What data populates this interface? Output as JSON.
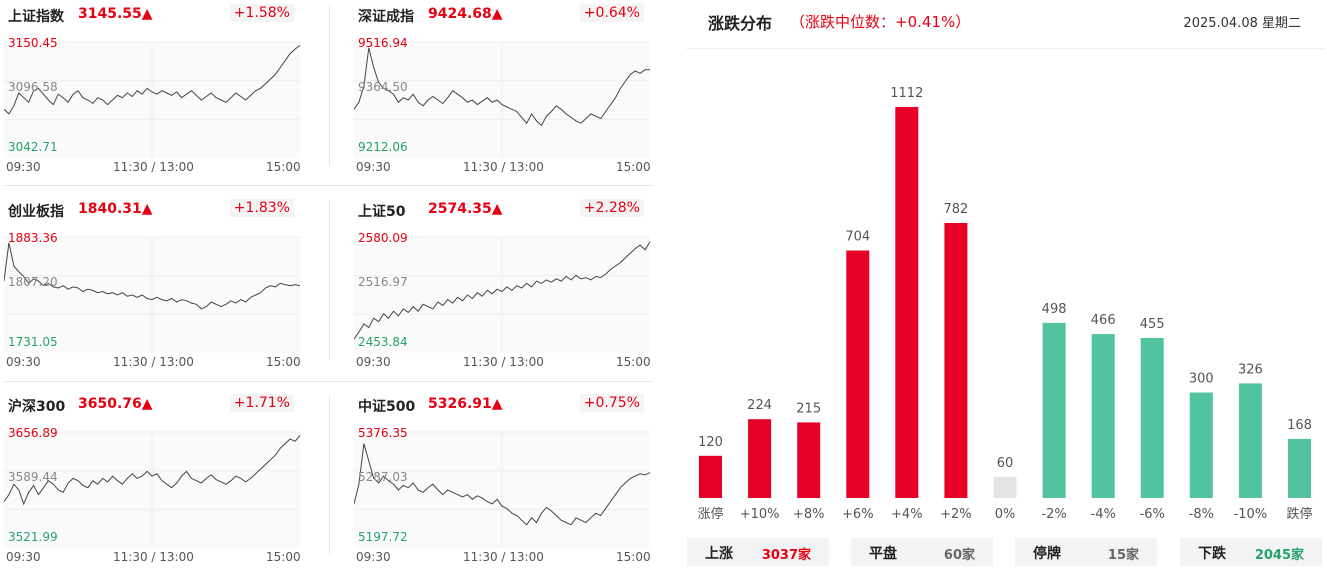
{
  "indices": [
    {
      "name": "上证指数",
      "value": "3145.55▲",
      "change": "+1.58%",
      "high": "3150.45",
      "mid": "3096.58",
      "low": "3042.71",
      "series": [
        0.42,
        0.38,
        0.45,
        0.56,
        0.52,
        0.48,
        0.58,
        0.6,
        0.55,
        0.5,
        0.46,
        0.55,
        0.52,
        0.48,
        0.55,
        0.58,
        0.52,
        0.5,
        0.47,
        0.52,
        0.5,
        0.46,
        0.5,
        0.54,
        0.52,
        0.56,
        0.53,
        0.58,
        0.55,
        0.6,
        0.57,
        0.55,
        0.58,
        0.56,
        0.54,
        0.57,
        0.52,
        0.55,
        0.58,
        0.54,
        0.5,
        0.53,
        0.56,
        0.52,
        0.5,
        0.48,
        0.52,
        0.56,
        0.53,
        0.5,
        0.54,
        0.58,
        0.6,
        0.64,
        0.68,
        0.72,
        0.78,
        0.84,
        0.9,
        0.94,
        0.97
      ]
    },
    {
      "name": "深证成指",
      "value": "9424.68▲",
      "change": "+0.64%",
      "high": "9516.94",
      "mid": "9364.50",
      "low": "9212.06",
      "series": [
        0.42,
        0.48,
        0.62,
        0.95,
        0.78,
        0.65,
        0.6,
        0.58,
        0.55,
        0.48,
        0.52,
        0.5,
        0.55,
        0.48,
        0.45,
        0.5,
        0.53,
        0.5,
        0.47,
        0.52,
        0.58,
        0.55,
        0.52,
        0.48,
        0.5,
        0.46,
        0.49,
        0.52,
        0.48,
        0.5,
        0.46,
        0.44,
        0.42,
        0.4,
        0.35,
        0.3,
        0.38,
        0.32,
        0.28,
        0.36,
        0.4,
        0.45,
        0.42,
        0.38,
        0.35,
        0.32,
        0.3,
        0.34,
        0.38,
        0.36,
        0.34,
        0.4,
        0.46,
        0.52,
        0.6,
        0.66,
        0.72,
        0.75,
        0.73,
        0.76,
        0.76
      ]
    },
    {
      "name": "创业板指",
      "value": "1840.31▲",
      "change": "+1.83%",
      "high": "1883.36",
      "mid": "1807.20",
      "low": "1731.05",
      "series": [
        0.62,
        0.95,
        0.75,
        0.7,
        0.66,
        0.6,
        0.64,
        0.62,
        0.58,
        0.6,
        0.57,
        0.56,
        0.58,
        0.55,
        0.57,
        0.56,
        0.53,
        0.55,
        0.54,
        0.52,
        0.53,
        0.51,
        0.52,
        0.5,
        0.52,
        0.49,
        0.5,
        0.48,
        0.5,
        0.47,
        0.46,
        0.48,
        0.46,
        0.45,
        0.47,
        0.44,
        0.46,
        0.45,
        0.43,
        0.42,
        0.38,
        0.4,
        0.44,
        0.42,
        0.4,
        0.42,
        0.45,
        0.43,
        0.46,
        0.44,
        0.48,
        0.5,
        0.52,
        0.56,
        0.58,
        0.57,
        0.6,
        0.59,
        0.58,
        0.59,
        0.58
      ]
    },
    {
      "name": "上证50",
      "value": "2574.35▲",
      "change": "+2.28%",
      "high": "2580.09",
      "mid": "2516.97",
      "low": "2453.84",
      "series": [
        0.12,
        0.18,
        0.25,
        0.22,
        0.3,
        0.27,
        0.34,
        0.3,
        0.36,
        0.32,
        0.38,
        0.35,
        0.4,
        0.36,
        0.42,
        0.4,
        0.38,
        0.44,
        0.41,
        0.46,
        0.43,
        0.48,
        0.45,
        0.5,
        0.47,
        0.52,
        0.49,
        0.54,
        0.51,
        0.55,
        0.53,
        0.57,
        0.54,
        0.58,
        0.56,
        0.6,
        0.57,
        0.62,
        0.6,
        0.63,
        0.61,
        0.64,
        0.62,
        0.66,
        0.63,
        0.67,
        0.64,
        0.65,
        0.63,
        0.66,
        0.65,
        0.68,
        0.72,
        0.75,
        0.78,
        0.82,
        0.86,
        0.9,
        0.93,
        0.89,
        0.96
      ]
    },
    {
      "name": "沪深300",
      "value": "3650.76▲",
      "change": "+1.71%",
      "high": "3656.89",
      "mid": "3589.44",
      "low": "3521.99",
      "series": [
        0.4,
        0.46,
        0.55,
        0.5,
        0.38,
        0.48,
        0.54,
        0.46,
        0.52,
        0.58,
        0.55,
        0.5,
        0.48,
        0.56,
        0.6,
        0.58,
        0.54,
        0.52,
        0.58,
        0.55,
        0.6,
        0.57,
        0.62,
        0.58,
        0.55,
        0.6,
        0.64,
        0.6,
        0.62,
        0.66,
        0.62,
        0.64,
        0.58,
        0.55,
        0.52,
        0.56,
        0.62,
        0.66,
        0.6,
        0.58,
        0.56,
        0.6,
        0.63,
        0.59,
        0.57,
        0.55,
        0.58,
        0.62,
        0.6,
        0.57,
        0.6,
        0.64,
        0.68,
        0.72,
        0.76,
        0.8,
        0.86,
        0.9,
        0.94,
        0.92,
        0.97
      ]
    },
    {
      "name": "中证500",
      "value": "5326.91▲",
      "change": "+0.75%",
      "high": "5376.35",
      "mid": "5287.03",
      "low": "5197.72",
      "series": [
        0.38,
        0.55,
        0.9,
        0.75,
        0.6,
        0.56,
        0.62,
        0.58,
        0.55,
        0.5,
        0.54,
        0.52,
        0.56,
        0.5,
        0.48,
        0.52,
        0.55,
        0.5,
        0.46,
        0.5,
        0.48,
        0.46,
        0.44,
        0.46,
        0.42,
        0.45,
        0.43,
        0.4,
        0.38,
        0.42,
        0.36,
        0.34,
        0.3,
        0.28,
        0.24,
        0.2,
        0.26,
        0.22,
        0.3,
        0.35,
        0.32,
        0.28,
        0.24,
        0.22,
        0.2,
        0.26,
        0.24,
        0.22,
        0.26,
        0.3,
        0.28,
        0.34,
        0.4,
        0.46,
        0.52,
        0.56,
        0.6,
        0.62,
        0.64,
        0.63,
        0.65
      ]
    }
  ],
  "time_labels": {
    "start": "09:30",
    "mid": "11:30 / 13:00",
    "end": "15:00"
  },
  "distribution": {
    "title": "涨跌分布",
    "subtitle": "（涨跌中位数：+0.41%）",
    "date": "2025.04.08 星期二",
    "colors": {
      "up": "#e60026",
      "flat": "#e4e4e4",
      "down": "#52c3a0"
    },
    "chart_data": {
      "type": "bar",
      "categories": [
        "涨停",
        "+10%",
        "+8%",
        "+6%",
        "+4%",
        "+2%",
        "0%",
        "-2%",
        "-4%",
        "-6%",
        "-8%",
        "-10%",
        "跌停"
      ],
      "values": [
        120,
        224,
        215,
        704,
        1112,
        782,
        60,
        498,
        466,
        455,
        300,
        326,
        168
      ],
      "ylim": [
        0,
        1112
      ]
    }
  },
  "summary": [
    {
      "label": "上涨",
      "value": "3037家",
      "color": "#e60012"
    },
    {
      "label": "平盘",
      "value": "60家",
      "color": "#666666"
    },
    {
      "label": "停牌",
      "value": "15家",
      "color": "#666666"
    },
    {
      "label": "下跌",
      "value": "2045家",
      "color": "#27a36d"
    }
  ]
}
